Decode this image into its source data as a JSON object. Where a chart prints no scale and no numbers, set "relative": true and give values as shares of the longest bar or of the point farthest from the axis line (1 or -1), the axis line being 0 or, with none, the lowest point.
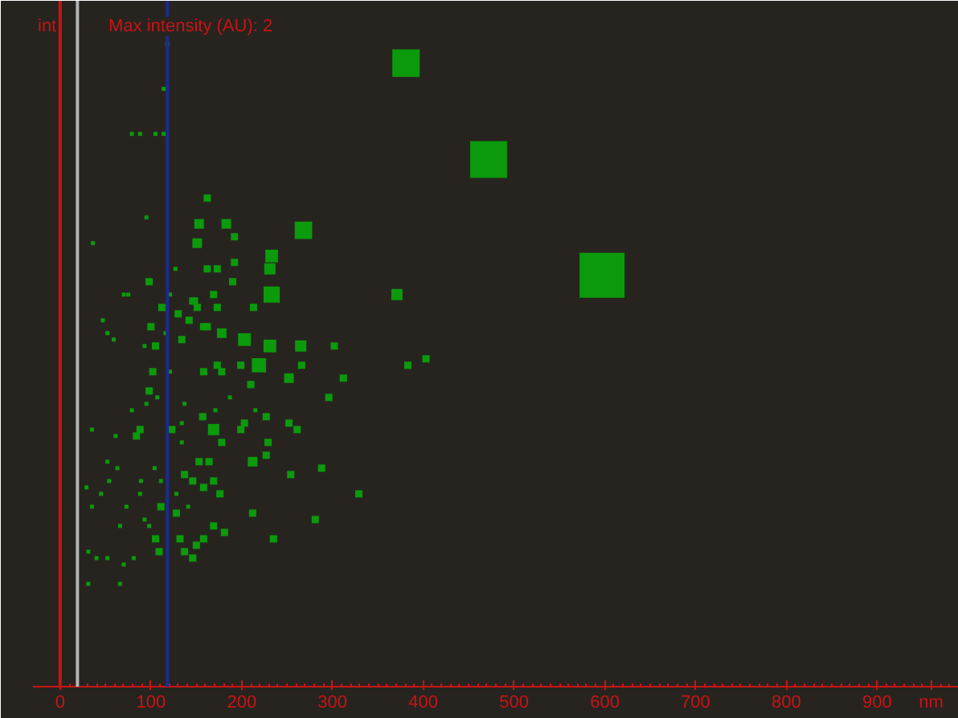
{
  "chart_data": {
    "type": "bubble",
    "ylabel": "int",
    "xlabel": "nm",
    "annotations": [
      "Max intensity (AU): 2"
    ],
    "relative": true,
    "marker": "square",
    "tick_labels": "x",
    "xlim": [
      -30,
      990
    ],
    "xticks": [
      0,
      100,
      200,
      300,
      400,
      500,
      600,
      700,
      800,
      900
    ],
    "ref_lines": [
      {
        "axis": "x",
        "value": 0,
        "color": "#c81414"
      },
      {
        "axis": "x",
        "value": 19,
        "color": "#b4b4b4"
      },
      {
        "axis": "x",
        "value": 118,
        "color": "#1e2a8c"
      }
    ],
    "series": [
      {
        "color": "#0b9a0b",
        "x": [
          381,
          472,
          597,
          118,
          114,
          79,
          88,
          105,
          114,
          162,
          95,
          153,
          183,
          268,
          192,
          151,
          36,
          233,
          231,
          127,
          162,
          173,
          192,
          233,
          371,
          98,
          75,
          70,
          146,
          169,
          121,
          190,
          47,
          112,
          130,
          148,
          151,
          142,
          173,
          213,
          52,
          59,
          100,
          116,
          162,
          178,
          203,
          231,
          265,
          302,
          383,
          403,
          312,
          296,
          219,
          158,
          134,
          105,
          93,
          173,
          178,
          199,
          102,
          121,
          158,
          252,
          266,
          210,
          187,
          98,
          107,
          79,
          95,
          157,
          137,
          171,
          215,
          227,
          252,
          203,
          169,
          261,
          199,
          123,
          88,
          84,
          61,
          35,
          134,
          229,
          178,
          134,
          227,
          212,
          153,
          164,
          288,
          254,
          63,
          52,
          104,
          137,
          54,
          111,
          146,
          169,
          89,
          29,
          45,
          158,
          176,
          329,
          128,
          88,
          73,
          141,
          111,
          35,
          212,
          281,
          128,
          169,
          181,
          93,
          98,
          66,
          235,
          132,
          158,
          105,
          150,
          137,
          109,
          31,
          40,
          81,
          52,
          70,
          146,
          31,
          66
        ],
        "values": [
          0.97,
          0.82,
          0.64,
          1.0,
          0.93,
          0.86,
          0.86,
          0.86,
          0.86,
          0.76,
          0.73,
          0.72,
          0.72,
          0.71,
          0.7,
          0.69,
          0.69,
          0.67,
          0.65,
          0.65,
          0.65,
          0.65,
          0.66,
          0.61,
          0.61,
          0.63,
          0.61,
          0.61,
          0.6,
          0.61,
          0.61,
          0.63,
          0.57,
          0.59,
          0.58,
          0.6,
          0.59,
          0.57,
          0.59,
          0.59,
          0.55,
          0.54,
          0.56,
          0.55,
          0.56,
          0.55,
          0.54,
          0.53,
          0.53,
          0.53,
          0.5,
          0.51,
          0.48,
          0.45,
          0.5,
          0.56,
          0.54,
          0.53,
          0.53,
          0.5,
          0.49,
          0.5,
          0.49,
          0.49,
          0.49,
          0.48,
          0.5,
          0.47,
          0.45,
          0.46,
          0.45,
          0.43,
          0.44,
          0.42,
          0.44,
          0.43,
          0.43,
          0.42,
          0.41,
          0.41,
          0.4,
          0.4,
          0.4,
          0.4,
          0.4,
          0.39,
          0.39,
          0.4,
          0.41,
          0.38,
          0.38,
          0.38,
          0.36,
          0.35,
          0.35,
          0.35,
          0.34,
          0.33,
          0.34,
          0.35,
          0.34,
          0.33,
          0.32,
          0.32,
          0.32,
          0.32,
          0.32,
          0.31,
          0.3,
          0.31,
          0.3,
          0.3,
          0.3,
          0.3,
          0.28,
          0.28,
          0.28,
          0.28,
          0.27,
          0.26,
          0.27,
          0.25,
          0.24,
          0.26,
          0.25,
          0.25,
          0.23,
          0.23,
          0.23,
          0.23,
          0.22,
          0.21,
          0.21,
          0.21,
          0.2,
          0.2,
          0.2,
          0.19,
          0.2,
          0.16,
          0.16
        ],
        "sizes": [
          0.37,
          0.67,
          1,
          0.008,
          0.008,
          0.008,
          0.008,
          0.008,
          0.008,
          0.026,
          0.008,
          0.046,
          0.046,
          0.15,
          0.026,
          0.046,
          0.008,
          0.08,
          0.0625,
          0.008,
          0.026,
          0.026,
          0.026,
          0.13,
          0.0625,
          0.026,
          0.008,
          0.008,
          0.026,
          0.026,
          0.008,
          0.026,
          0.008,
          0.026,
          0.026,
          0.026,
          0.026,
          0.026,
          0.026,
          0.026,
          0.008,
          0.008,
          0.026,
          0.008,
          0.026,
          0.046,
          0.08,
          0.08,
          0.0625,
          0.026,
          0.026,
          0.026,
          0.026,
          0.026,
          0.1,
          0.026,
          0.026,
          0.026,
          0.008,
          0.026,
          0.026,
          0.026,
          0.026,
          0.008,
          0.026,
          0.046,
          0.026,
          0.026,
          0.008,
          0.026,
          0.008,
          0.008,
          0.008,
          0.026,
          0.008,
          0.008,
          0.008,
          0.026,
          0.026,
          0.026,
          0.0625,
          0.026,
          0.026,
          0.026,
          0.026,
          0.026,
          0.008,
          0.008,
          0.008,
          0.026,
          0.026,
          0.008,
          0.026,
          0.046,
          0.026,
          0.026,
          0.026,
          0.026,
          0.008,
          0.008,
          0.008,
          0.026,
          0.008,
          0.008,
          0.026,
          0.026,
          0.008,
          0.008,
          0.008,
          0.026,
          0.026,
          0.026,
          0.008,
          0.008,
          0.008,
          0.008,
          0.026,
          0.008,
          0.026,
          0.026,
          0.026,
          0.026,
          0.026,
          0.008,
          0.008,
          0.008,
          0.026,
          0.026,
          0.026,
          0.026,
          0.026,
          0.026,
          0.026,
          0.008,
          0.008,
          0.008,
          0.008,
          0.008,
          0.026,
          0.008,
          0.008
        ]
      }
    ]
  }
}
